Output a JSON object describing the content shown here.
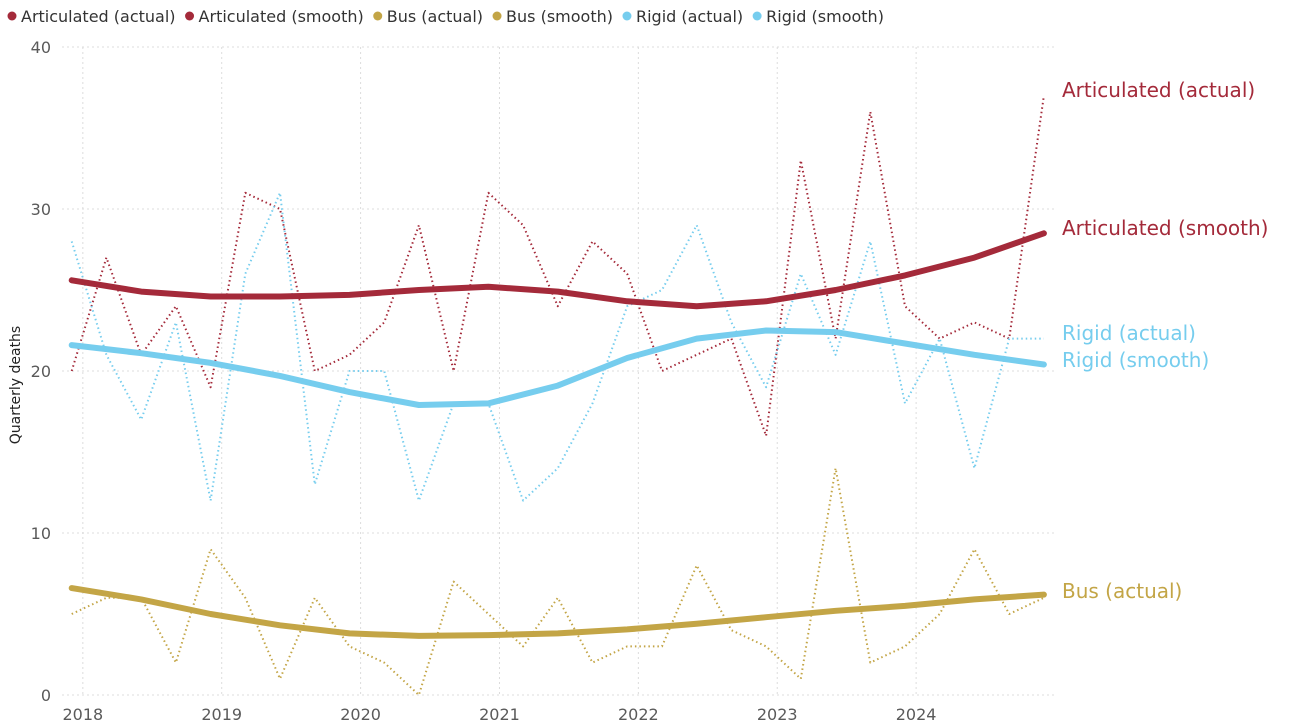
{
  "chart_data": {
    "type": "line",
    "ylabel": "Quarterly deaths",
    "ylim": [
      0,
      40
    ],
    "yticks": [
      0,
      10,
      20,
      30,
      40
    ],
    "xlim": [
      2017.85,
      2025.0
    ],
    "xticks": [
      "2018",
      "2019",
      "2020",
      "2021",
      "2022",
      "2023",
      "2024"
    ],
    "grid": true,
    "legend_position": "top-left",
    "colors": {
      "Articulated": "#A42A3A",
      "Bus": "#C3A546",
      "Rigid": "#76CDEE"
    },
    "series": [
      {
        "name": "Articulated (actual)",
        "group": "Articulated",
        "style": "dotted",
        "end_label": "Articulated (actual)",
        "x": [
          2017.92,
          2018.17,
          2018.42,
          2018.67,
          2018.92,
          2019.17,
          2019.42,
          2019.67,
          2019.92,
          2020.17,
          2020.42,
          2020.67,
          2020.92,
          2021.17,
          2021.42,
          2021.67,
          2021.92,
          2022.17,
          2022.42,
          2022.67,
          2022.92,
          2023.17,
          2023.42,
          2023.67,
          2023.92,
          2024.17,
          2024.42,
          2024.67,
          2024.92
        ],
        "values": [
          20,
          27,
          21,
          24,
          19,
          31,
          30,
          20,
          21,
          23,
          29,
          20,
          31,
          29,
          24,
          28,
          26,
          20,
          21,
          22,
          16,
          33,
          22,
          36,
          24,
          22,
          23,
          22,
          37
        ]
      },
      {
        "name": "Articulated (smooth)",
        "group": "Articulated",
        "style": "solid",
        "end_label": "Articulated (smooth)",
        "x": [
          2017.92,
          2018.42,
          2018.92,
          2019.42,
          2019.92,
          2020.42,
          2020.92,
          2021.42,
          2021.92,
          2022.42,
          2022.92,
          2023.42,
          2023.92,
          2024.42,
          2024.92
        ],
        "values": [
          25.6,
          24.9,
          24.6,
          24.6,
          24.7,
          25.0,
          25.2,
          24.9,
          24.3,
          24.0,
          24.3,
          25.0,
          25.9,
          27.0,
          28.5
        ]
      },
      {
        "name": "Bus (actual)",
        "group": "Bus",
        "style": "dotted",
        "end_label": "Bus (actual)",
        "x": [
          2017.92,
          2018.17,
          2018.42,
          2018.67,
          2018.92,
          2019.17,
          2019.42,
          2019.67,
          2019.92,
          2020.17,
          2020.42,
          2020.67,
          2020.92,
          2021.17,
          2021.42,
          2021.67,
          2021.92,
          2022.17,
          2022.42,
          2022.67,
          2022.92,
          2023.17,
          2023.42,
          2023.67,
          2023.92,
          2024.17,
          2024.42,
          2024.67,
          2024.92
        ],
        "values": [
          5,
          6,
          6,
          2,
          9,
          6,
          1,
          6,
          3,
          2,
          0,
          7,
          5,
          3,
          6,
          2,
          3,
          3,
          8,
          4,
          3,
          1,
          14,
          2,
          3,
          5,
          9,
          5,
          6
        ]
      },
      {
        "name": "Bus (smooth)",
        "group": "Bus",
        "style": "solid",
        "x": [
          2017.92,
          2018.42,
          2018.92,
          2019.42,
          2019.92,
          2020.42,
          2020.92,
          2021.42,
          2021.92,
          2022.42,
          2022.92,
          2023.42,
          2023.92,
          2024.42,
          2024.92
        ],
        "values": [
          6.6,
          5.9,
          5.0,
          4.3,
          3.8,
          3.65,
          3.7,
          3.8,
          4.05,
          4.4,
          4.8,
          5.2,
          5.5,
          5.9,
          6.2
        ]
      },
      {
        "name": "Rigid (actual)",
        "group": "Rigid",
        "style": "dotted",
        "end_label": "Rigid (actual)",
        "x": [
          2017.92,
          2018.17,
          2018.42,
          2018.67,
          2018.92,
          2019.17,
          2019.42,
          2019.67,
          2019.92,
          2020.17,
          2020.42,
          2020.67,
          2020.92,
          2021.17,
          2021.42,
          2021.67,
          2021.92,
          2022.17,
          2022.42,
          2022.67,
          2022.92,
          2023.17,
          2023.42,
          2023.67,
          2023.92,
          2024.17,
          2024.42,
          2024.67,
          2024.92
        ],
        "values": [
          28,
          21,
          17,
          23,
          12,
          26,
          31,
          13,
          20,
          20,
          12,
          18,
          18,
          12,
          14,
          18,
          24,
          25,
          29,
          23,
          19,
          26,
          21,
          28,
          18,
          22,
          14,
          22,
          22
        ]
      },
      {
        "name": "Rigid (smooth)",
        "group": "Rigid",
        "style": "solid",
        "end_label": "Rigid (smooth)",
        "x": [
          2017.92,
          2018.42,
          2018.92,
          2019.42,
          2019.92,
          2020.42,
          2020.92,
          2021.42,
          2021.92,
          2022.42,
          2022.92,
          2023.42,
          2023.92,
          2024.42,
          2024.92
        ],
        "values": [
          21.6,
          21.1,
          20.5,
          19.7,
          18.7,
          17.9,
          18.0,
          19.1,
          20.8,
          22.0,
          22.5,
          22.4,
          21.7,
          21.0,
          20.4
        ]
      }
    ]
  }
}
